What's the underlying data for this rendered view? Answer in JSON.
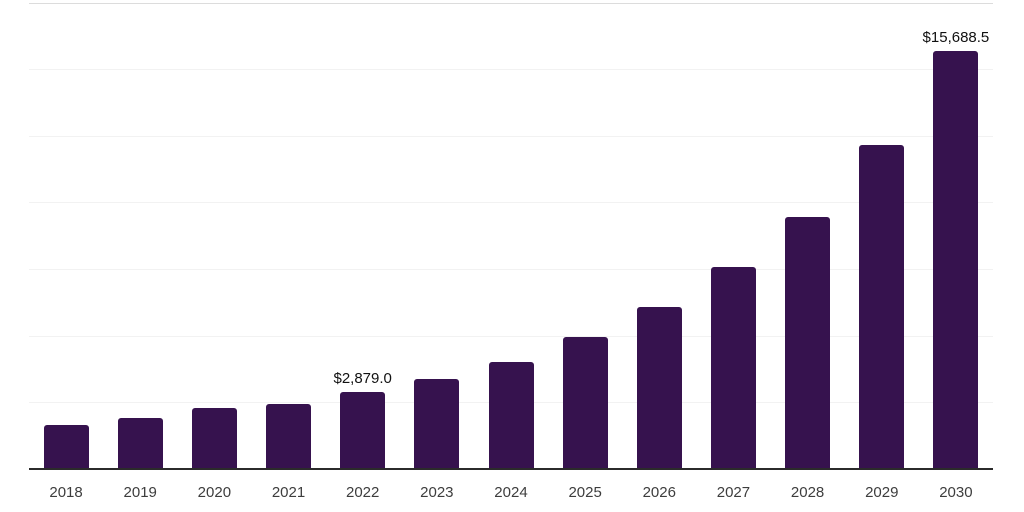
{
  "chart_data": {
    "type": "bar",
    "title": "",
    "xlabel": "",
    "ylabel": "",
    "categories": [
      "2018",
      "2019",
      "2020",
      "2021",
      "2022",
      "2023",
      "2024",
      "2025",
      "2026",
      "2027",
      "2028",
      "2029",
      "2030"
    ],
    "values": [
      1660,
      1920,
      2280,
      2430,
      2879.0,
      3360,
      4030,
      4950,
      6070,
      7560,
      9470,
      12140,
      15688.5
    ],
    "data_labels": {
      "2022": "$2,879.0",
      "2030": "$15,688.5"
    },
    "ylim": [
      0,
      17500
    ],
    "gridline_step": 2500,
    "grid": true,
    "legend": "none",
    "y_tick_labels_shown": false,
    "bar_color": "#36124E",
    "axis_line_color": "#2b2b2b",
    "gridline_color": "#f2f2f2",
    "top_gridline_color": "#dcdcdc",
    "data_label_color": "#111111",
    "x_label_color": "#3d3d3d"
  }
}
